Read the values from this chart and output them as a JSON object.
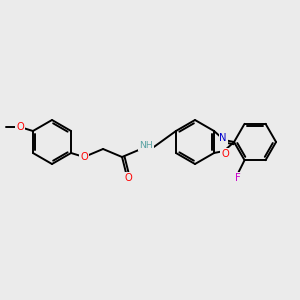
{
  "background_color": "#ebebeb",
  "bond_color": "#000000",
  "atom_colors": {
    "O": "#ff0000",
    "N": "#0000cd",
    "F": "#cc00cc",
    "H": "#5ba3a3",
    "C": "#000000"
  },
  "figsize": [
    3.0,
    3.0
  ],
  "dpi": 100,
  "bond_lw": 1.4,
  "font_size": 7.2
}
